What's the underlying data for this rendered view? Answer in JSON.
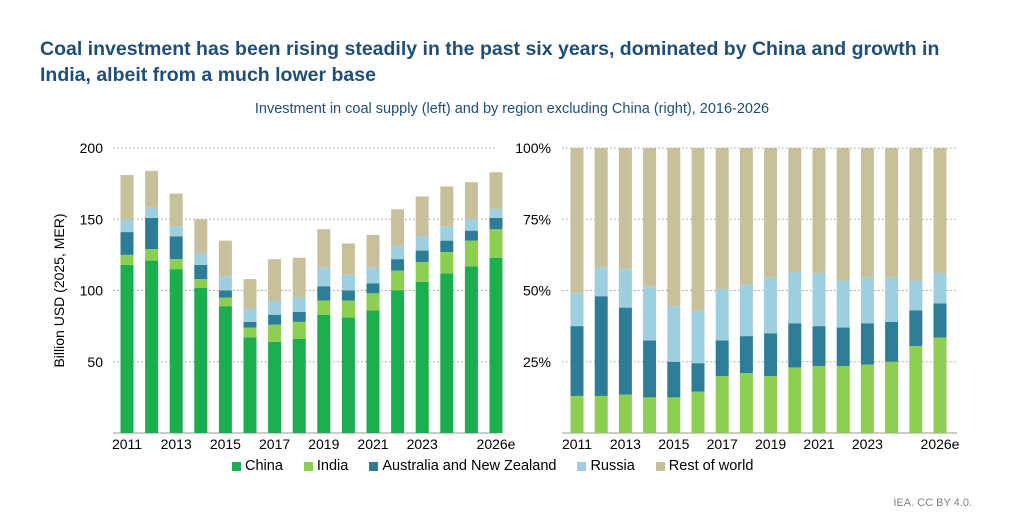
{
  "headline": "Coal investment has been rising steadily in the past six years, dominated by China and growth in India, albeit from a much lower base",
  "subtitle": "Investment in coal supply (left) and by region excluding China (right), 2016-2026",
  "source": "IEA. CC BY 4.0.",
  "legend": [
    {
      "label": "China",
      "color": "#1aae4e"
    },
    {
      "label": "India",
      "color": "#8ccf50"
    },
    {
      "label": "Australia and New Zealand",
      "color": "#2e7d96"
    },
    {
      "label": "Russia",
      "color": "#9dcfe0"
    },
    {
      "label": "Rest of world",
      "color": "#c7c09b"
    }
  ],
  "chart_data": [
    {
      "type": "bar",
      "stacked": true,
      "ylabel": "Billion USD (2025, MER)",
      "ylim": [
        0,
        200
      ],
      "yticks": [
        50,
        100,
        150,
        200
      ],
      "categories": [
        "2011",
        "2012",
        "2013",
        "2014",
        "2015",
        "2016",
        "2017",
        "2018",
        "2019",
        "2020",
        "2021",
        "2022",
        "2023",
        "2024",
        "2025",
        "2026e"
      ],
      "xtick_labels": [
        "2011",
        "2013",
        "2015",
        "2017",
        "2019",
        "2021",
        "2023",
        "2026e"
      ],
      "grid": true,
      "series": [
        {
          "name": "China",
          "color": "#1aae4e",
          "values": [
            118,
            121,
            115,
            102,
            89,
            67,
            64,
            66,
            83,
            81,
            86,
            100,
            106,
            112,
            117,
            123
          ]
        },
        {
          "name": "India",
          "color": "#8ccf50",
          "values": [
            7,
            8,
            7,
            6,
            6,
            7,
            12,
            12,
            10,
            12,
            12,
            14,
            14,
            15,
            18,
            20
          ]
        },
        {
          "name": "Australia and New Zealand",
          "color": "#2e7d96",
          "values": [
            16,
            22,
            16,
            10,
            5,
            4,
            7,
            7,
            10,
            7,
            7,
            8,
            8,
            8,
            7,
            8
          ]
        },
        {
          "name": "Russia",
          "color": "#9dcfe0",
          "values": [
            9,
            7,
            7,
            8,
            10,
            9,
            10,
            10,
            13,
            11,
            11,
            9,
            10,
            10,
            8,
            6
          ]
        },
        {
          "name": "Rest of world",
          "color": "#c7c09b",
          "values": [
            31,
            26,
            23,
            24,
            25,
            21,
            29,
            28,
            27,
            22,
            23,
            26,
            28,
            28,
            26,
            26
          ]
        }
      ]
    },
    {
      "type": "bar",
      "stacked": true,
      "percent": true,
      "ylim": [
        0,
        100
      ],
      "yticks": [
        "25%",
        "50%",
        "75%",
        "100%"
      ],
      "categories": [
        "2011",
        "2012",
        "2013",
        "2014",
        "2015",
        "2016",
        "2017",
        "2018",
        "2019",
        "2020",
        "2021",
        "2022",
        "2023",
        "2024",
        "2025",
        "2026e"
      ],
      "xtick_labels": [
        "2011",
        "2013",
        "2015",
        "2017",
        "2019",
        "2021",
        "2023",
        "2026e"
      ],
      "grid": true,
      "series": [
        {
          "name": "India",
          "color": "#8ccf50",
          "values": [
            13,
            13,
            13.5,
            12.5,
            12.5,
            14.5,
            20,
            21,
            20,
            23,
            23.5,
            23.5,
            24,
            25,
            30.5,
            33.5
          ]
        },
        {
          "name": "Australia and New Zealand",
          "color": "#2e7d96",
          "values": [
            24.5,
            35,
            30.5,
            20,
            12.5,
            10,
            12.5,
            13,
            15,
            15.5,
            14,
            13.5,
            14.5,
            14,
            12.5,
            12
          ]
        },
        {
          "name": "Russia",
          "color": "#9dcfe0",
          "values": [
            11.5,
            10,
            13.5,
            19,
            19.5,
            18.5,
            18,
            18,
            19.5,
            18,
            18.5,
            16.5,
            16,
            15.5,
            10.5,
            10.5
          ]
        },
        {
          "name": "Rest of world",
          "color": "#c7c09b",
          "values": [
            51,
            42,
            42.5,
            48.5,
            55.5,
            57,
            49.5,
            48,
            45.5,
            43.5,
            44,
            46.5,
            45.5,
            45.5,
            46.5,
            44
          ]
        }
      ]
    }
  ]
}
